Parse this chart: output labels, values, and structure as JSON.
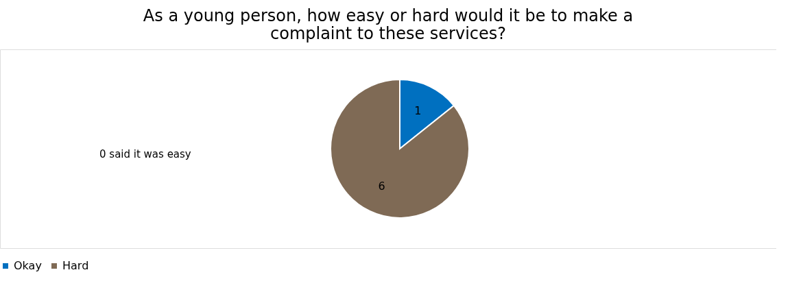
{
  "chart_data": {
    "type": "pie",
    "title": "As a young person, how easy or hard would it be to make a complaint to these services?",
    "categories": [
      "Okay",
      "Hard"
    ],
    "values": [
      1,
      6
    ],
    "colors": [
      "#0070c0",
      "#7f6a55"
    ],
    "data_labels": true,
    "legend": "bottom",
    "annotations": [
      "0 said it was  easy"
    ]
  }
}
